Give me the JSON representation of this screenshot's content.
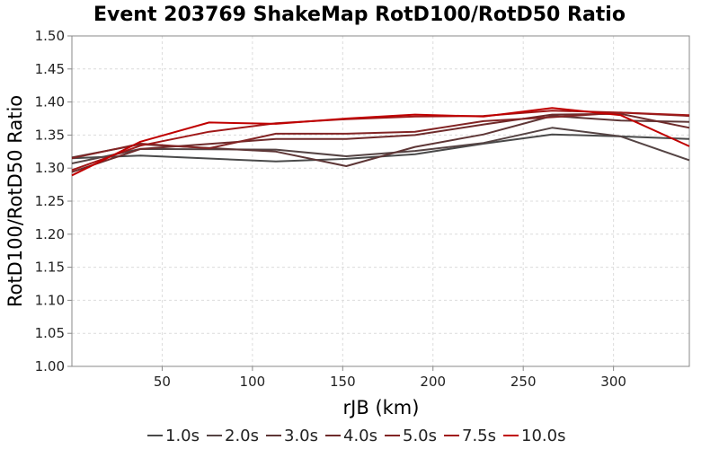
{
  "colors": {
    "background": "#ffffff",
    "grid": "#dcdcdc",
    "axis": "#888888"
  },
  "chart_data": {
    "type": "line",
    "title": "Event 203769 ShakeMap RotD100/RotD50 Ratio",
    "xlabel": "rJB (km)",
    "ylabel": "RotD100/RotD50 Ratio",
    "xlim": [
      0,
      342
    ],
    "ylim": [
      1.0,
      1.5
    ],
    "x_ticks": [
      50,
      100,
      150,
      200,
      250,
      300
    ],
    "x_tick_labels": [
      "50",
      "100",
      "150",
      "200",
      "250",
      "300"
    ],
    "y_ticks": [
      1.0,
      1.05,
      1.1,
      1.15,
      1.2,
      1.25,
      1.3,
      1.35,
      1.4,
      1.45,
      1.5
    ],
    "y_tick_labels": [
      "1.00",
      "1.05",
      "1.10",
      "1.15",
      "1.20",
      "1.25",
      "1.30",
      "1.35",
      "1.40",
      "1.45",
      "1.50"
    ],
    "grid": true,
    "legend_position": "bottom",
    "series": [
      {
        "name": "1.0s",
        "color": "#4a4a4a",
        "x": [
          0,
          38,
          113,
          152,
          190,
          228,
          266,
          304,
          342
        ],
        "y": [
          1.315,
          1.319,
          1.31,
          1.314,
          1.321,
          1.337,
          1.351,
          1.348,
          1.344
        ]
      },
      {
        "name": "2.0s",
        "color": "#554444",
        "x": [
          0,
          38,
          113,
          152,
          190,
          228,
          266,
          304,
          342
        ],
        "y": [
          1.307,
          1.329,
          1.328,
          1.318,
          1.326,
          1.338,
          1.361,
          1.348,
          1.312
        ]
      },
      {
        "name": "3.0s",
        "color": "#5e3636",
        "x": [
          0,
          38,
          113,
          152,
          190,
          228,
          266,
          304,
          342
        ],
        "y": [
          1.316,
          1.336,
          1.325,
          1.303,
          1.332,
          1.351,
          1.379,
          1.372,
          1.37
        ]
      },
      {
        "name": "4.0s",
        "color": "#6e2b2b",
        "x": [
          0,
          38,
          113,
          152,
          190,
          228,
          266,
          304,
          342
        ],
        "y": [
          1.294,
          1.329,
          1.344,
          1.344,
          1.35,
          1.366,
          1.381,
          1.382,
          1.361
        ]
      },
      {
        "name": "5.0s",
        "color": "#822424",
        "x": [
          0,
          38,
          76,
          113,
          152,
          190,
          228,
          266,
          304,
          342
        ],
        "y": [
          1.315,
          1.337,
          1.33,
          1.352,
          1.352,
          1.355,
          1.371,
          1.377,
          1.384,
          1.379
        ]
      },
      {
        "name": "7.5s",
        "color": "#a01818",
        "x": [
          0,
          38,
          76,
          113,
          152,
          190,
          228,
          266,
          304,
          342
        ],
        "y": [
          1.297,
          1.334,
          1.355,
          1.368,
          1.374,
          1.378,
          1.379,
          1.387,
          1.384,
          1.38
        ]
      },
      {
        "name": "10.0s",
        "color": "#c00000",
        "x": [
          0,
          38,
          76,
          113,
          152,
          190,
          228,
          266,
          304,
          342
        ],
        "y": [
          1.289,
          1.34,
          1.369,
          1.367,
          1.375,
          1.381,
          1.378,
          1.391,
          1.38,
          1.333
        ]
      }
    ]
  }
}
